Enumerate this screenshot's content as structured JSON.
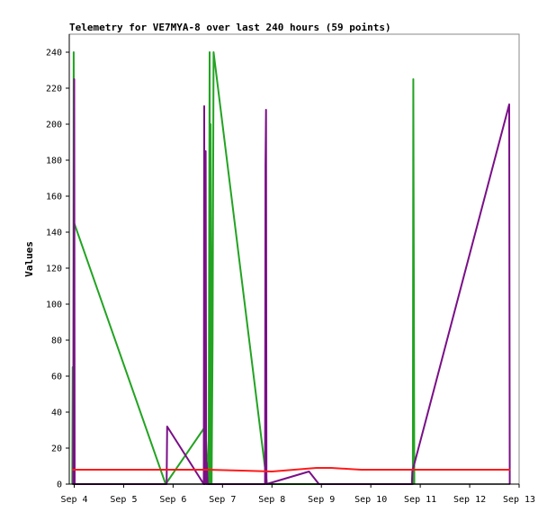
{
  "chart_data": {
    "type": "line",
    "title": "Telemetry for VE7MYA-8 over last 240 hours (59 points)",
    "xlabel": "",
    "ylabel": "Values",
    "x_unit": "days",
    "x_range": [
      3.9,
      13.0
    ],
    "ylim": [
      0,
      250
    ],
    "x_ticks": [
      {
        "value": 4,
        "label": "Sep 4"
      },
      {
        "value": 5,
        "label": "Sep 5"
      },
      {
        "value": 6,
        "label": "Sep 6"
      },
      {
        "value": 7,
        "label": "Sep 7"
      },
      {
        "value": 8,
        "label": "Sep 8"
      },
      {
        "value": 9,
        "label": "Sep 9"
      },
      {
        "value": 10,
        "label": "Sep 10"
      },
      {
        "value": 11,
        "label": "Sep 11"
      },
      {
        "value": 12,
        "label": "Sep 12"
      },
      {
        "value": 13,
        "label": "Sep 13"
      }
    ],
    "y_ticks": [
      0,
      20,
      40,
      60,
      80,
      100,
      120,
      140,
      160,
      180,
      200,
      220,
      240
    ],
    "grid": false,
    "legend": "none",
    "colors": {
      "series_green": "#22a322",
      "series_purple": "#7a0f87",
      "series_red": "#ff1a1a",
      "series_black": "#000000",
      "axes": "#000000",
      "frame": "#888888"
    },
    "series": [
      {
        "color_key": "series_green",
        "points": [
          [
            3.96,
            0
          ],
          [
            3.97,
            65
          ],
          [
            3.98,
            0
          ],
          [
            3.99,
            240
          ],
          [
            4.0,
            145
          ],
          [
            5.85,
            0
          ],
          [
            6.65,
            32
          ],
          [
            6.72,
            0
          ],
          [
            6.74,
            240
          ],
          [
            6.75,
            0
          ],
          [
            6.76,
            200
          ],
          [
            6.77,
            120
          ],
          [
            6.78,
            0
          ],
          [
            6.8,
            80
          ],
          [
            6.82,
            240
          ],
          [
            7.9,
            0
          ],
          [
            10.85,
            0
          ],
          [
            10.86,
            225
          ],
          [
            10.87,
            112
          ],
          [
            10.88,
            0
          ]
        ]
      },
      {
        "color_key": "series_purple",
        "points": [
          [
            3.98,
            0
          ],
          [
            4.0,
            225
          ],
          [
            4.01,
            0
          ],
          [
            5.87,
            0
          ],
          [
            5.88,
            32
          ],
          [
            6.62,
            0
          ],
          [
            6.63,
            210
          ],
          [
            6.64,
            0
          ],
          [
            6.66,
            185
          ],
          [
            6.67,
            0
          ],
          [
            6.68,
            12
          ],
          [
            6.7,
            0
          ],
          [
            7.86,
            0
          ],
          [
            7.87,
            177
          ],
          [
            7.88,
            208
          ],
          [
            7.89,
            0
          ],
          [
            8.75,
            7
          ],
          [
            8.95,
            0
          ],
          [
            10.83,
            0
          ],
          [
            10.84,
            7
          ],
          [
            12.8,
            211
          ],
          [
            12.81,
            0
          ]
        ]
      },
      {
        "color_key": "series_red",
        "points": [
          [
            3.96,
            8
          ],
          [
            6.7,
            8
          ],
          [
            7.4,
            7.5
          ],
          [
            8.0,
            7
          ],
          [
            8.9,
            9
          ],
          [
            9.2,
            9
          ],
          [
            9.8,
            8
          ],
          [
            12.82,
            8
          ]
        ]
      },
      {
        "color_key": "series_black",
        "points": [
          [
            3.96,
            0
          ],
          [
            12.82,
            0
          ]
        ]
      }
    ]
  }
}
